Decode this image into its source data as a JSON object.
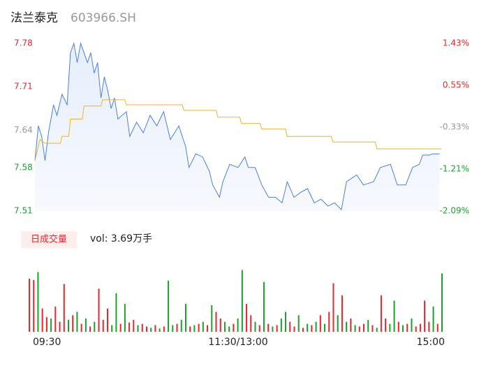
{
  "header": {
    "name": "法兰泰克",
    "code": "603966.SH"
  },
  "chart_data": [
    {
      "type": "line",
      "xlim": [
        0,
        240
      ],
      "ylim": [
        7.51,
        7.78
      ],
      "yticks": [
        7.78,
        7.71,
        7.64,
        7.58,
        7.51
      ],
      "ytick_colors": [
        "#e8262b",
        "#e8262b",
        "#999999",
        "#1aa12a",
        "#1aa12a"
      ],
      "y2lim": [
        -2.09,
        1.43
      ],
      "y2ticks": [
        {
          "value": 1.43,
          "label": "1.43%"
        },
        {
          "value": 0.55,
          "label": "0.55%"
        },
        {
          "value": -0.33,
          "label": "-0.33%"
        },
        {
          "value": -1.21,
          "label": "-1.21%"
        },
        {
          "value": -2.09,
          "label": "-2.09%"
        }
      ],
      "series": [
        {
          "color": "#4a7fe0",
          "x": [
            0,
            2,
            4,
            6,
            8,
            11,
            13,
            16,
            19,
            21,
            23,
            25,
            27,
            29,
            31,
            33,
            35,
            37,
            39,
            41,
            43,
            45,
            47,
            49,
            54,
            56,
            60,
            64,
            68,
            72,
            76,
            80,
            85,
            89,
            91,
            95,
            99,
            103,
            105,
            109,
            111,
            115,
            120,
            124,
            126,
            130,
            134,
            138,
            142,
            146,
            149,
            153,
            157,
            161,
            165,
            169,
            173,
            177,
            181,
            184,
            190,
            194,
            200,
            204,
            210,
            214,
            219,
            223,
            227,
            229,
            233,
            235,
            239
          ],
          "values": [
            7.591,
            7.647,
            7.63,
            7.591,
            7.636,
            7.681,
            7.664,
            7.698,
            7.681,
            7.765,
            7.78,
            7.749,
            7.78,
            7.765,
            7.749,
            7.765,
            7.732,
            7.749,
            7.692,
            7.726,
            7.704,
            7.675,
            7.692,
            7.658,
            7.67,
            7.63,
            7.653,
            7.636,
            7.664,
            7.647,
            7.67,
            7.625,
            7.647,
            7.614,
            7.58,
            7.602,
            7.597,
            7.574,
            7.552,
            7.532,
            7.557,
            7.585,
            7.58,
            7.597,
            7.58,
            7.58,
            7.552,
            7.532,
            7.532,
            7.523,
            7.557,
            7.532,
            7.54,
            7.546,
            7.523,
            7.529,
            7.518,
            7.523,
            7.512,
            7.557,
            7.568,
            7.552,
            7.557,
            7.58,
            7.585,
            7.552,
            7.552,
            7.58,
            7.585,
            7.6,
            7.6,
            7.602,
            7.602
          ]
        },
        {
          "color": "#f0b323",
          "x": [
            0,
            3,
            6,
            15,
            16,
            20,
            21,
            28,
            29,
            39,
            40,
            53,
            54,
            87,
            88,
            107,
            108,
            121,
            122,
            133,
            134,
            148,
            149,
            175,
            176,
            201,
            202,
            240
          ],
          "values": [
            7.591,
            7.625,
            7.619,
            7.619,
            7.63,
            7.63,
            7.658,
            7.658,
            7.679,
            7.679,
            7.689,
            7.689,
            7.681,
            7.681,
            7.672,
            7.672,
            7.661,
            7.661,
            7.651,
            7.651,
            7.642,
            7.642,
            7.63,
            7.63,
            7.621,
            7.621,
            7.61,
            7.61
          ]
        }
      ]
    },
    {
      "type": "bar",
      "legend_label": "日成交量",
      "summary": "vol: 3.69万手",
      "ylim": [
        0,
        100
      ],
      "xlim": [
        0,
        240
      ],
      "xticks": [
        {
          "value": 0,
          "label": "09:30"
        },
        {
          "value": 120,
          "label": "11:30/13:00"
        },
        {
          "value": 240,
          "label": "15:00"
        }
      ],
      "series": [
        {
          "color": "#e8262b",
          "values": [
            80,
            78,
            null,
            35,
            22,
            null,
            38,
            15,
            72,
            null,
            25,
            null,
            12,
            null,
            8,
            null,
            65,
            18,
            35,
            null,
            null,
            12,
            null,
            14,
            18,
            null,
            12,
            8,
            null,
            10,
            null,
            8,
            null,
            null,
            12,
            null,
            null,
            8,
            null,
            12,
            null,
            10,
            null,
            30,
            20,
            null,
            null,
            12,
            null,
            null,
            42,
            25,
            null,
            10,
            null,
            12,
            null,
            10,
            null,
            null,
            15,
            8,
            null,
            6,
            null,
            10,
            null,
            25,
            null,
            30,
            73,
            null,
            55,
            null,
            20,
            null,
            8,
            12,
            null,
            10,
            null,
            55,
            20,
            null,
            null,
            15,
            null,
            12,
            null,
            8,
            12,
            47,
            15,
            null,
            12,
            null
          ]
        },
        {
          "color": "#1aa12a",
          "values": [
            null,
            null,
            90,
            null,
            null,
            20,
            null,
            null,
            null,
            18,
            null,
            30,
            null,
            20,
            null,
            15,
            null,
            null,
            null,
            10,
            58,
            null,
            42,
            null,
            null,
            10,
            null,
            null,
            6,
            null,
            5,
            null,
            77,
            10,
            null,
            18,
            42,
            null,
            10,
            null,
            15,
            null,
            40,
            null,
            null,
            15,
            8,
            null,
            20,
            93,
            null,
            null,
            15,
            null,
            75,
            null,
            8,
            null,
            20,
            30,
            null,
            null,
            25,
            null,
            12,
            null,
            15,
            null,
            12,
            null,
            null,
            25,
            null,
            15,
            null,
            10,
            null,
            null,
            18,
            null,
            6,
            null,
            null,
            12,
            47,
            null,
            10,
            null,
            20,
            null,
            null,
            null,
            null,
            38,
            null,
            88
          ]
        }
      ]
    }
  ]
}
